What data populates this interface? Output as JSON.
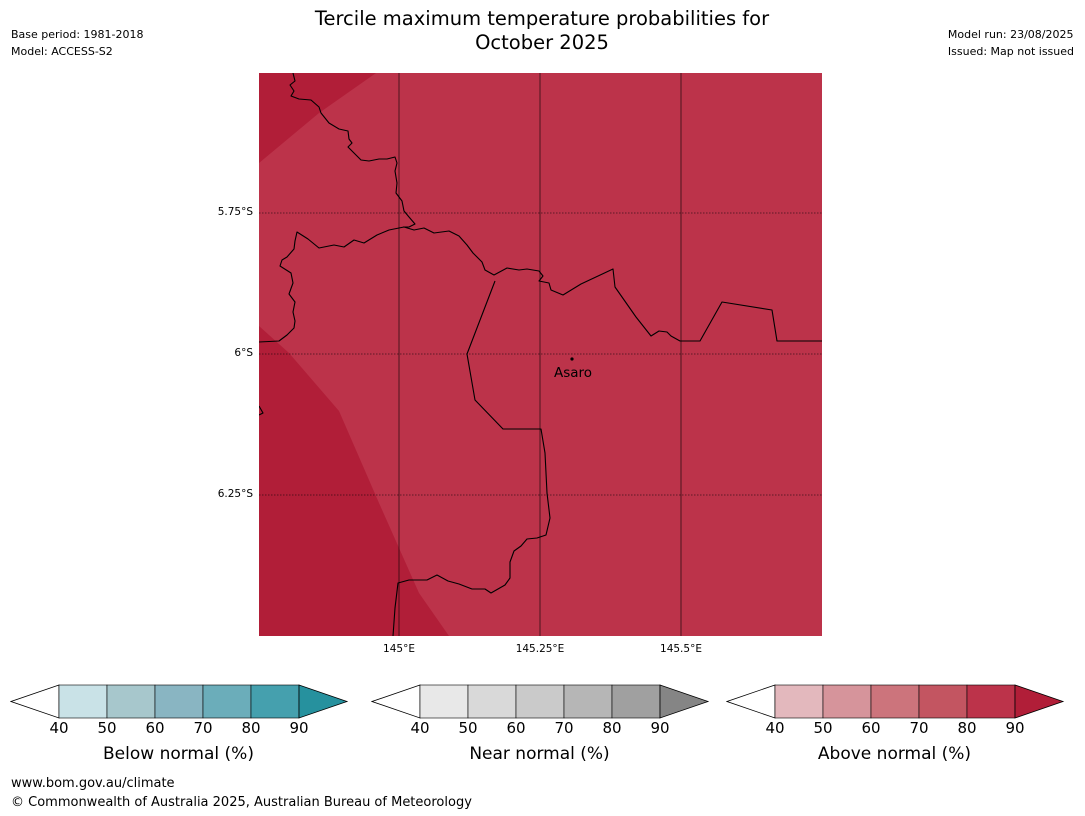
{
  "header": {
    "title_line1": "Tercile maximum temperature probabilities for",
    "title_line2": "October 2025",
    "base_period": "Base period: 1981-2018",
    "model": "Model: ACCESS-S2",
    "model_run": "Model run: 23/08/2025",
    "issued": "Issued: Map not issued"
  },
  "map": {
    "latitude_labels": [
      "5.75°S",
      "6°S",
      "6.25°S"
    ],
    "longitude_labels": [
      "145°E",
      "145.25°E",
      "145.5°E"
    ],
    "place_label": "Asaro",
    "colors": {
      "above_80_90": "#bc334a",
      "above_90_plus": "#b11e38",
      "boundary": "#000000",
      "gridline": "#000000"
    }
  },
  "legends": [
    {
      "title": "Below normal (%)",
      "ticks": [
        "40",
        "50",
        "60",
        "70",
        "80",
        "90"
      ],
      "colors": [
        "#ffffff",
        "#c9e2e7",
        "#a7c7cc",
        "#89b5c2",
        "#6badba",
        "#45a0ae",
        "#26919e"
      ]
    },
    {
      "title": "Near normal (%)",
      "ticks": [
        "40",
        "50",
        "60",
        "70",
        "80",
        "90"
      ],
      "colors": [
        "#ffffff",
        "#e8e8e8",
        "#d9d9d9",
        "#cacaca",
        "#b6b6b6",
        "#a0a0a0",
        "#858585"
      ]
    },
    {
      "title": "Above normal (%)",
      "ticks": [
        "40",
        "50",
        "60",
        "70",
        "80",
        "90"
      ],
      "colors": [
        "#ffffff",
        "#e3b8bd",
        "#d6949b",
        "#cc747c",
        "#c35561",
        "#bc334a",
        "#b11e38"
      ]
    }
  ],
  "footer": {
    "url": "www.bom.gov.au/climate",
    "copyright": "© Commonwealth of Australia 2025, Australian Bureau of Meteorology"
  }
}
